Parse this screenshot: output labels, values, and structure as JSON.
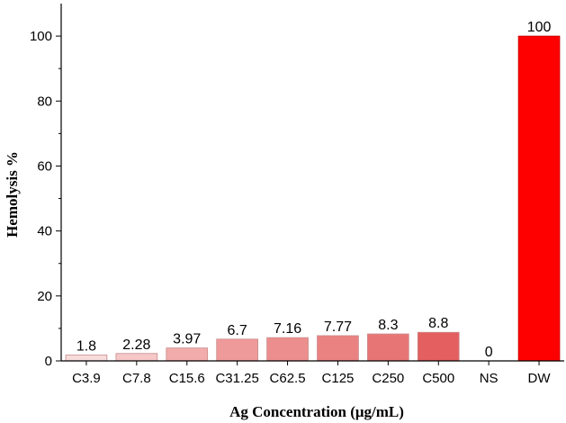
{
  "chart_data": {
    "type": "bar",
    "title": "",
    "xlabel": "Ag Concentration (μg/mL)",
    "ylabel": "Hemolysis %",
    "ylim": [
      0,
      110
    ],
    "yticks": [
      0,
      20,
      40,
      60,
      80,
      100
    ],
    "categories": [
      "C3.9",
      "C7.8",
      "C15.6",
      "C31.25",
      "C62.5",
      "C125",
      "C250",
      "C500",
      "NS",
      "DW"
    ],
    "values": [
      1.8,
      2.28,
      3.97,
      6.7,
      7.16,
      7.77,
      8.3,
      8.8,
      0,
      100
    ],
    "data_labels": [
      "1.8",
      "2.28",
      "3.97",
      "6.7",
      "7.16",
      "7.77",
      "8.3",
      "8.8",
      "0",
      "100"
    ],
    "colors": [
      "#f8dcdc",
      "#f5c7c7",
      "#f2acac",
      "#ef9a9a",
      "#ec8e8e",
      "#ea8282",
      "#e87575",
      "#e45f5f",
      "#ffffff",
      "#ff0000"
    ],
    "grid": false,
    "legend": "none"
  }
}
